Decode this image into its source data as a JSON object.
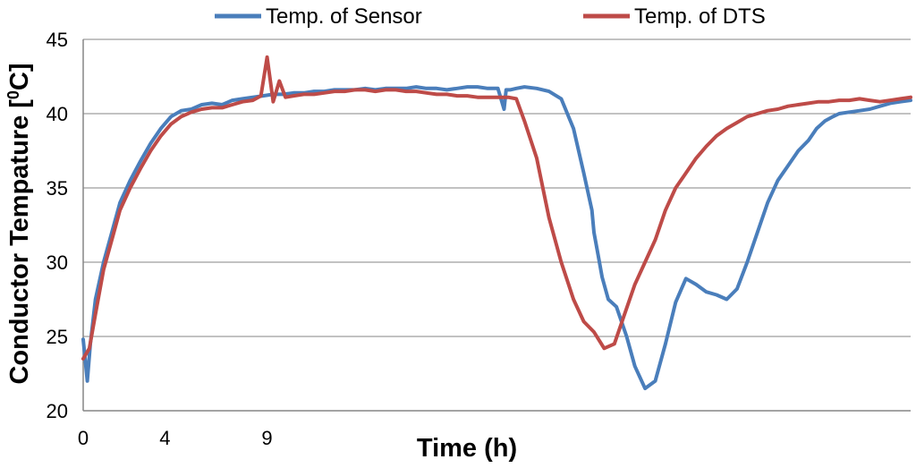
{
  "chart_data": {
    "type": "line",
    "xlabel": "Time (h)",
    "ylabel_main": "Conductor Tempature [",
    "ylabel_sup": "0",
    "ylabel_tail": "C]",
    "ylim": [
      20,
      45
    ],
    "y_ticks": [
      "20",
      "25",
      "30",
      "35",
      "40",
      "45"
    ],
    "x_ticks": [
      {
        "label": "0",
        "t": 0
      },
      {
        "label": "4",
        "t": 4
      },
      {
        "label": "9",
        "t": 9
      }
    ],
    "xlim": [
      0,
      40.5
    ],
    "grid": "horizontal",
    "legend_position": "top",
    "series": [
      {
        "name": "Temp. of Sensor",
        "color": "#4a7ebb",
        "x": [
          0,
          0.2,
          0.35,
          0.6,
          1,
          1.4,
          1.8,
          2.3,
          2.8,
          3.3,
          3.8,
          4.3,
          4.8,
          5.3,
          5.8,
          6.3,
          6.8,
          7.3,
          7.8,
          8.3,
          8.8,
          9.3,
          9.8,
          10.3,
          10.8,
          11.3,
          11.8,
          12.3,
          12.8,
          13.3,
          13.8,
          14.3,
          14.8,
          15.3,
          15.8,
          16.3,
          16.8,
          17.3,
          17.8,
          18.3,
          18.8,
          19.3,
          19.8,
          20.3,
          20.6,
          20.7,
          20.9,
          21.2,
          21.6,
          22.2,
          22.8,
          23.4,
          24,
          24.5,
          24.9,
          25,
          25.2,
          25.4,
          25.7,
          26.1,
          26.6,
          27,
          27.5,
          28,
          28.5,
          29,
          29.5,
          30,
          30.5,
          31,
          31.5,
          32,
          32.5,
          33,
          33.5,
          34,
          34.5,
          35,
          35.5,
          35.9,
          36.3,
          36.7,
          37,
          37.5,
          38,
          38.5,
          39,
          39.5,
          40,
          40.5
        ],
        "y": [
          24.8,
          22,
          24.5,
          27.5,
          30,
          32,
          34,
          35.5,
          36.8,
          38,
          39,
          39.8,
          40.2,
          40.3,
          40.6,
          40.7,
          40.6,
          40.9,
          41,
          41.1,
          41.2,
          41.3,
          41.3,
          41.4,
          41.4,
          41.5,
          41.5,
          41.6,
          41.6,
          41.6,
          41.7,
          41.6,
          41.7,
          41.7,
          41.7,
          41.8,
          41.7,
          41.7,
          41.6,
          41.7,
          41.8,
          41.8,
          41.7,
          41.7,
          40.3,
          41.6,
          41.6,
          41.7,
          41.8,
          41.7,
          41.5,
          41,
          39,
          36,
          33.5,
          32,
          30.5,
          29,
          27.5,
          27,
          25,
          23,
          21.5,
          22,
          24.5,
          27.3,
          28.9,
          28.5,
          28,
          27.8,
          27.5,
          28.2,
          30,
          32,
          34,
          35.5,
          36.5,
          37.5,
          38.2,
          39,
          39.5,
          39.8,
          40,
          40.1,
          40.2,
          40.3,
          40.5,
          40.7,
          40.8,
          40.9
        ]
      },
      {
        "name": "Temp. of DTS",
        "color": "#be4b48",
        "x": [
          0,
          0.3,
          0.6,
          1,
          1.4,
          1.8,
          2.3,
          2.8,
          3.3,
          3.8,
          4.3,
          4.8,
          5.3,
          5.8,
          6.3,
          6.8,
          7.3,
          7.8,
          8.3,
          8.7,
          9,
          9.3,
          9.6,
          9.9,
          10.3,
          10.8,
          11.3,
          11.8,
          12.3,
          12.8,
          13.3,
          13.8,
          14.3,
          14.8,
          15.3,
          15.8,
          16.3,
          16.8,
          17.3,
          17.8,
          18.3,
          18.8,
          19.3,
          19.8,
          20.3,
          20.8,
          21.2,
          21.6,
          22.2,
          22.8,
          23.4,
          24,
          24.5,
          25,
          25.5,
          26,
          26.5,
          27,
          27.5,
          28,
          28.5,
          29,
          29.5,
          30,
          30.5,
          31,
          31.5,
          32,
          32.5,
          33,
          33.5,
          34,
          34.5,
          35,
          35.5,
          36,
          36.5,
          37,
          37.5,
          38,
          38.5,
          39,
          39.5,
          40,
          40.5
        ],
        "y": [
          23.5,
          24.2,
          26.5,
          29.5,
          31.5,
          33.5,
          35,
          36.3,
          37.5,
          38.5,
          39.3,
          39.8,
          40.1,
          40.3,
          40.4,
          40.4,
          40.6,
          40.8,
          40.9,
          41.2,
          43.8,
          40.8,
          42.2,
          41.1,
          41.2,
          41.3,
          41.3,
          41.4,
          41.5,
          41.5,
          41.6,
          41.6,
          41.5,
          41.6,
          41.6,
          41.5,
          41.5,
          41.4,
          41.3,
          41.3,
          41.2,
          41.2,
          41.1,
          41.1,
          41.1,
          41.1,
          41,
          39.5,
          37,
          33,
          30,
          27.5,
          26,
          25.3,
          24.2,
          24.5,
          26.5,
          28.5,
          30,
          31.5,
          33.5,
          35,
          36,
          37,
          37.8,
          38.5,
          39,
          39.4,
          39.8,
          40,
          40.2,
          40.3,
          40.5,
          40.6,
          40.7,
          40.8,
          40.8,
          40.9,
          40.9,
          41,
          40.9,
          40.8,
          40.9,
          41,
          41.1
        ]
      }
    ]
  }
}
